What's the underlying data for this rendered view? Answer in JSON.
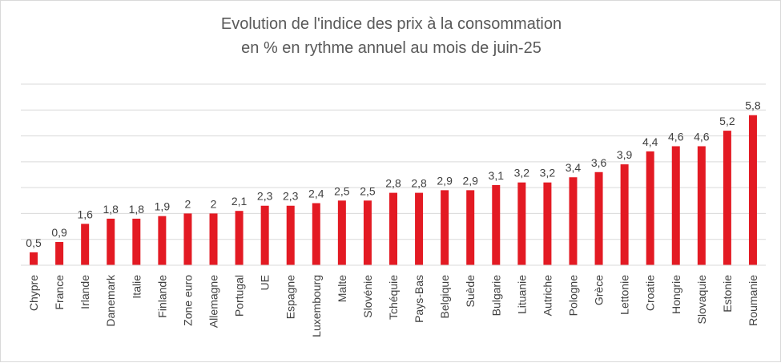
{
  "chart_data": {
    "type": "bar",
    "title": "Evolution de l'indice des prix à la consommation",
    "subtitle": "en % en rythme annuel au mois de juin-25",
    "xlabel": "",
    "ylabel": "",
    "categories": [
      "Chypre",
      "France",
      "Irlande",
      "Danemark",
      "Italie",
      "Finlande",
      "Zone euro",
      "Allemagne",
      "Portugal",
      "UE",
      "Espagne",
      "Luxembourg",
      "Malte",
      "Slovénie",
      "Tchéquie",
      "Pays-Bas",
      "Belgique",
      "Suède",
      "Bulgarie",
      "Lituanie",
      "Autriche",
      "Pologne",
      "Grèce",
      "Lettonie",
      "Croatie",
      "Hongrie",
      "Slovaquie",
      "Estonie",
      "Roumanie"
    ],
    "values": [
      0.5,
      0.9,
      1.6,
      1.8,
      1.8,
      1.9,
      2,
      2,
      2.1,
      2.3,
      2.3,
      2.4,
      2.5,
      2.5,
      2.8,
      2.8,
      2.9,
      2.9,
      3.1,
      3.2,
      3.2,
      3.4,
      3.6,
      3.9,
      4.4,
      4.6,
      4.6,
      5.2,
      5.8
    ],
    "value_labels": [
      "0,5",
      "0,9",
      "1,6",
      "1,8",
      "1,8",
      "1,9",
      "2",
      "2",
      "2,1",
      "2,3",
      "2,3",
      "2,4",
      "2,5",
      "2,5",
      "2,8",
      "2,8",
      "2,9",
      "2,9",
      "3,1",
      "3,2",
      "3,2",
      "3,4",
      "3,6",
      "3,9",
      "4,4",
      "4,6",
      "4,6",
      "5,2",
      "5,8"
    ],
    "ylim": [
      0,
      7
    ],
    "grid": true,
    "legend": "none",
    "bar_color": "#e31a23",
    "grid_color": "#d9d9d9",
    "text_color": "#404040"
  }
}
